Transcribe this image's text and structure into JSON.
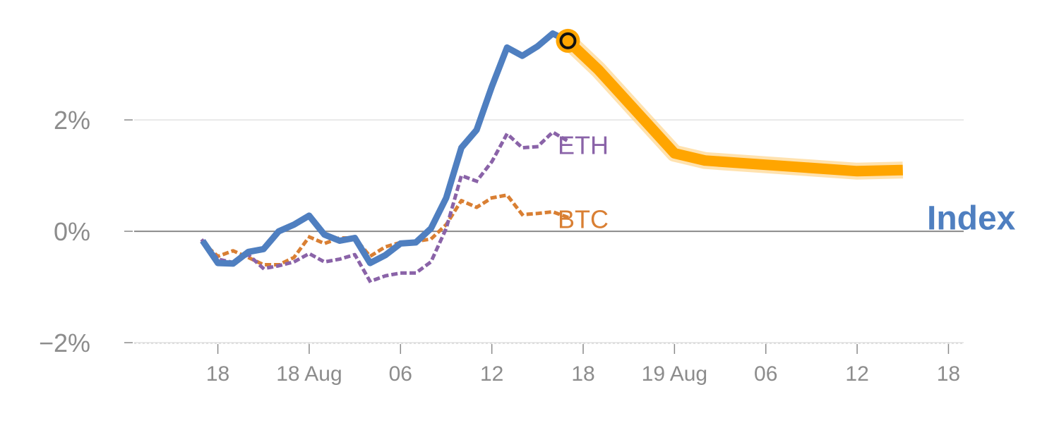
{
  "chart_data": {
    "type": "line",
    "title": "",
    "xlabel": "",
    "ylabel": "",
    "ylim": [
      -2.05,
      3.9
    ],
    "x_unit": "hours",
    "x_ticks": [
      {
        "label": "18",
        "x": 18
      },
      {
        "label": "18 Aug",
        "x": 24
      },
      {
        "label": "06",
        "x": 30
      },
      {
        "label": "12",
        "x": 36
      },
      {
        "label": "18",
        "x": 42
      },
      {
        "label": "19 Aug",
        "x": 48
      },
      {
        "label": "06",
        "x": 54
      },
      {
        "label": "12",
        "x": 60
      },
      {
        "label": "18",
        "x": 66
      }
    ],
    "y_ticks": [
      {
        "label": "−2%",
        "value": -2
      },
      {
        "label": "0%",
        "value": 0
      },
      {
        "label": "2%",
        "value": 2
      }
    ],
    "series": [
      {
        "name": "Index",
        "label": "Index",
        "color": "#4f7fc0",
        "style": "solid",
        "x": [
          17,
          18,
          19,
          20,
          21,
          22,
          23,
          24,
          25,
          26,
          27,
          28,
          29,
          30,
          31,
          32,
          33,
          34,
          35,
          36,
          37,
          38,
          39,
          40,
          41
        ],
        "values": [
          -0.17,
          -0.57,
          -0.58,
          -0.37,
          -0.32,
          0.0,
          0.12,
          0.28,
          -0.06,
          -0.17,
          -0.12,
          -0.57,
          -0.43,
          -0.22,
          -0.2,
          0.05,
          0.6,
          1.5,
          1.82,
          2.6,
          3.3,
          3.15,
          3.32,
          3.55,
          3.42
        ]
      },
      {
        "name": "Index",
        "label": "",
        "color": "#ffa500",
        "style": "forecast",
        "x": [
          41,
          43,
          48,
          50,
          60,
          63
        ],
        "values": [
          3.42,
          2.9,
          1.4,
          1.27,
          1.08,
          1.1
        ]
      },
      {
        "name": "ETH",
        "label": "ETH",
        "color": "#8a63a8",
        "style": "dotted",
        "x": [
          17,
          18,
          19,
          20,
          21,
          22,
          23,
          24,
          25,
          26,
          27,
          28,
          29,
          30,
          31,
          32,
          33,
          34,
          35,
          36,
          37,
          38,
          39,
          40,
          41
        ],
        "values": [
          -0.17,
          -0.5,
          -0.56,
          -0.42,
          -0.67,
          -0.62,
          -0.55,
          -0.4,
          -0.55,
          -0.5,
          -0.42,
          -0.9,
          -0.8,
          -0.75,
          -0.75,
          -0.55,
          0.05,
          1.0,
          0.9,
          1.25,
          1.75,
          1.5,
          1.52,
          1.78,
          1.62
        ]
      },
      {
        "name": "BTC",
        "label": "BTC",
        "color": "#d97f33",
        "style": "dotted",
        "x": [
          17,
          18,
          19,
          20,
          21,
          22,
          23,
          24,
          25,
          26,
          27,
          28,
          29,
          30,
          31,
          32,
          33,
          34,
          35,
          36,
          37,
          38,
          39,
          40,
          41
        ],
        "values": [
          -0.2,
          -0.45,
          -0.35,
          -0.47,
          -0.6,
          -0.6,
          -0.47,
          -0.1,
          -0.22,
          -0.12,
          -0.12,
          -0.45,
          -0.28,
          -0.2,
          -0.18,
          -0.14,
          0.12,
          0.55,
          0.43,
          0.6,
          0.65,
          0.3,
          0.32,
          0.35,
          0.25
        ]
      }
    ],
    "marker": {
      "x": 41,
      "value": 3.42
    },
    "grid": true
  }
}
